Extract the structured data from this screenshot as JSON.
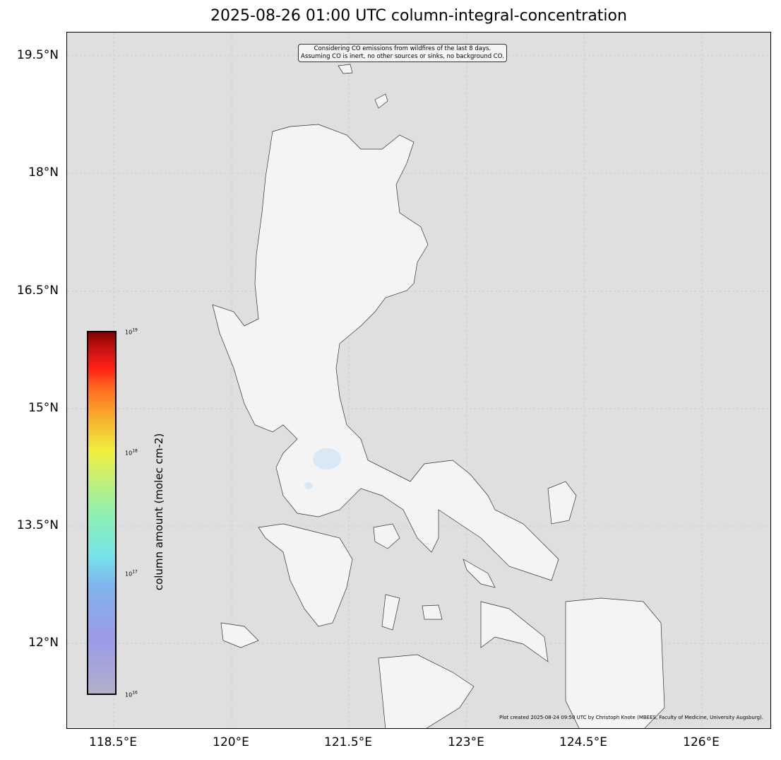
{
  "title": "2025-08-26 01:00 UTC column-integral-concentration",
  "annotation": {
    "line1": "Considering CO emissions from wildfires of the last 8 days.",
    "line2": "Assuming CO is inert, no other sources or sinks, no background CO."
  },
  "credit": "Plot created 2025-08-24 09:50 UTC by Christoph Knote (MBEES, Faculty of Medicine, University Augsburg).",
  "x_ticks": [
    "118.5°E",
    "120°E",
    "121.5°E",
    "123°E",
    "124.5°E",
    "126°E"
  ],
  "y_ticks": [
    "19.5°N",
    "18°N",
    "16.5°N",
    "15°N",
    "13.5°N",
    "12°N"
  ],
  "colorbar": {
    "label": "column amount (molec cm-2)",
    "scale": "log",
    "ticks": [
      {
        "base": "10",
        "exp": "19"
      },
      {
        "base": "10",
        "exp": "18"
      },
      {
        "base": "10",
        "exp": "17"
      },
      {
        "base": "10",
        "exp": "16"
      }
    ],
    "colormap": "jet-like (grey-blue to dark red)"
  },
  "colors": {
    "ocean": "#dfdfdf",
    "land": "#f4f4f4",
    "water": "#d8e8f4"
  }
}
